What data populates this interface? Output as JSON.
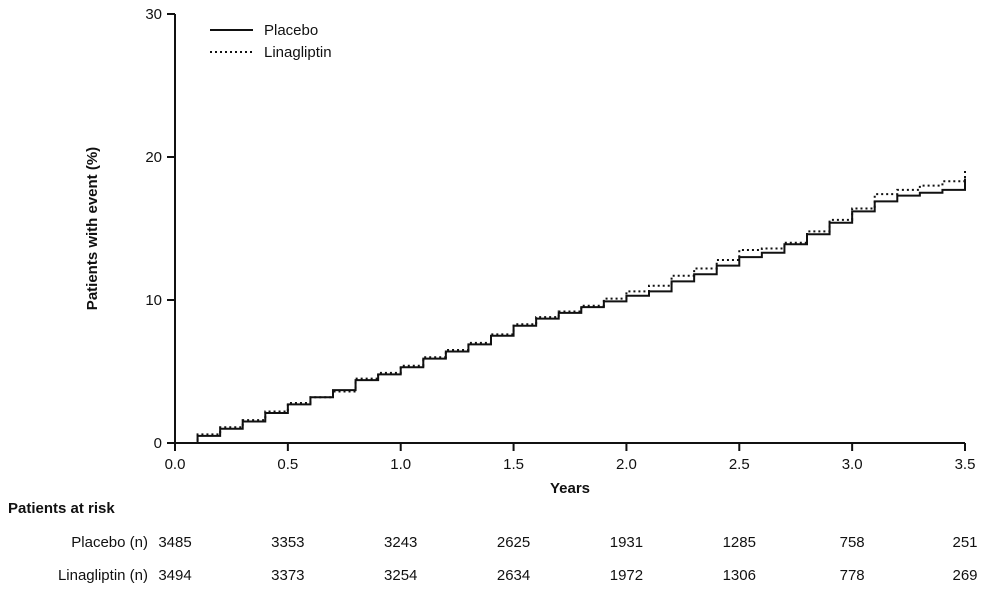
{
  "chart_data": {
    "type": "line",
    "subtype": "kaplan-meier-step",
    "title": "",
    "xlabel": "Years",
    "ylabel": "Patients with event (%)",
    "xlim": [
      0,
      3.5
    ],
    "ylim": [
      0,
      30
    ],
    "grid": false,
    "legend_position": "top-left",
    "x_ticks": [
      "0.0",
      "0.5",
      "1.0",
      "1.5",
      "2.0",
      "2.5",
      "3.0",
      "3.5"
    ],
    "y_ticks": [
      "0",
      "10",
      "20",
      "30"
    ],
    "x": [
      0,
      0.1,
      0.2,
      0.3,
      0.4,
      0.5,
      0.6,
      0.7,
      0.8,
      0.9,
      1.0,
      1.1,
      1.2,
      1.3,
      1.4,
      1.5,
      1.6,
      1.7,
      1.8,
      1.9,
      2.0,
      2.1,
      2.2,
      2.3,
      2.4,
      2.5,
      2.6,
      2.7,
      2.8,
      2.9,
      3.0,
      3.1,
      3.2,
      3.3,
      3.4,
      3.5
    ],
    "series": [
      {
        "name": "Placebo",
        "line": "solid",
        "color": "#111111",
        "values": [
          0,
          0.5,
          1.0,
          1.5,
          2.1,
          2.7,
          3.2,
          3.7,
          4.4,
          4.8,
          5.3,
          5.9,
          6.4,
          6.9,
          7.5,
          8.2,
          8.7,
          9.1,
          9.5,
          9.9,
          10.3,
          10.6,
          11.3,
          11.8,
          12.4,
          13.0,
          13.3,
          13.9,
          14.6,
          15.4,
          16.2,
          16.9,
          17.3,
          17.5,
          17.7,
          18.5
        ]
      },
      {
        "name": "Linagliptin",
        "line": "dotted",
        "color": "#111111",
        "values": [
          0,
          0.6,
          1.1,
          1.6,
          2.2,
          2.8,
          3.2,
          3.6,
          4.5,
          4.9,
          5.4,
          6.0,
          6.5,
          7.0,
          7.6,
          8.3,
          8.8,
          9.2,
          9.6,
          10.1,
          10.6,
          11.0,
          11.7,
          12.2,
          12.8,
          13.5,
          13.6,
          14.0,
          14.8,
          15.6,
          16.4,
          17.4,
          17.7,
          18.0,
          18.3,
          19.2
        ]
      }
    ]
  },
  "risk_table": {
    "title": "Patients at risk",
    "tick_times": [
      0.0,
      0.5,
      1.0,
      1.5,
      2.0,
      2.5,
      3.0,
      3.5
    ],
    "rows": [
      {
        "label": "Placebo (n)",
        "values": [
          3485,
          3353,
          3243,
          2625,
          1931,
          1285,
          758,
          251
        ]
      },
      {
        "label": "Linagliptin (n)",
        "values": [
          3494,
          3373,
          3254,
          2634,
          1972,
          1306,
          778,
          269
        ]
      }
    ]
  }
}
